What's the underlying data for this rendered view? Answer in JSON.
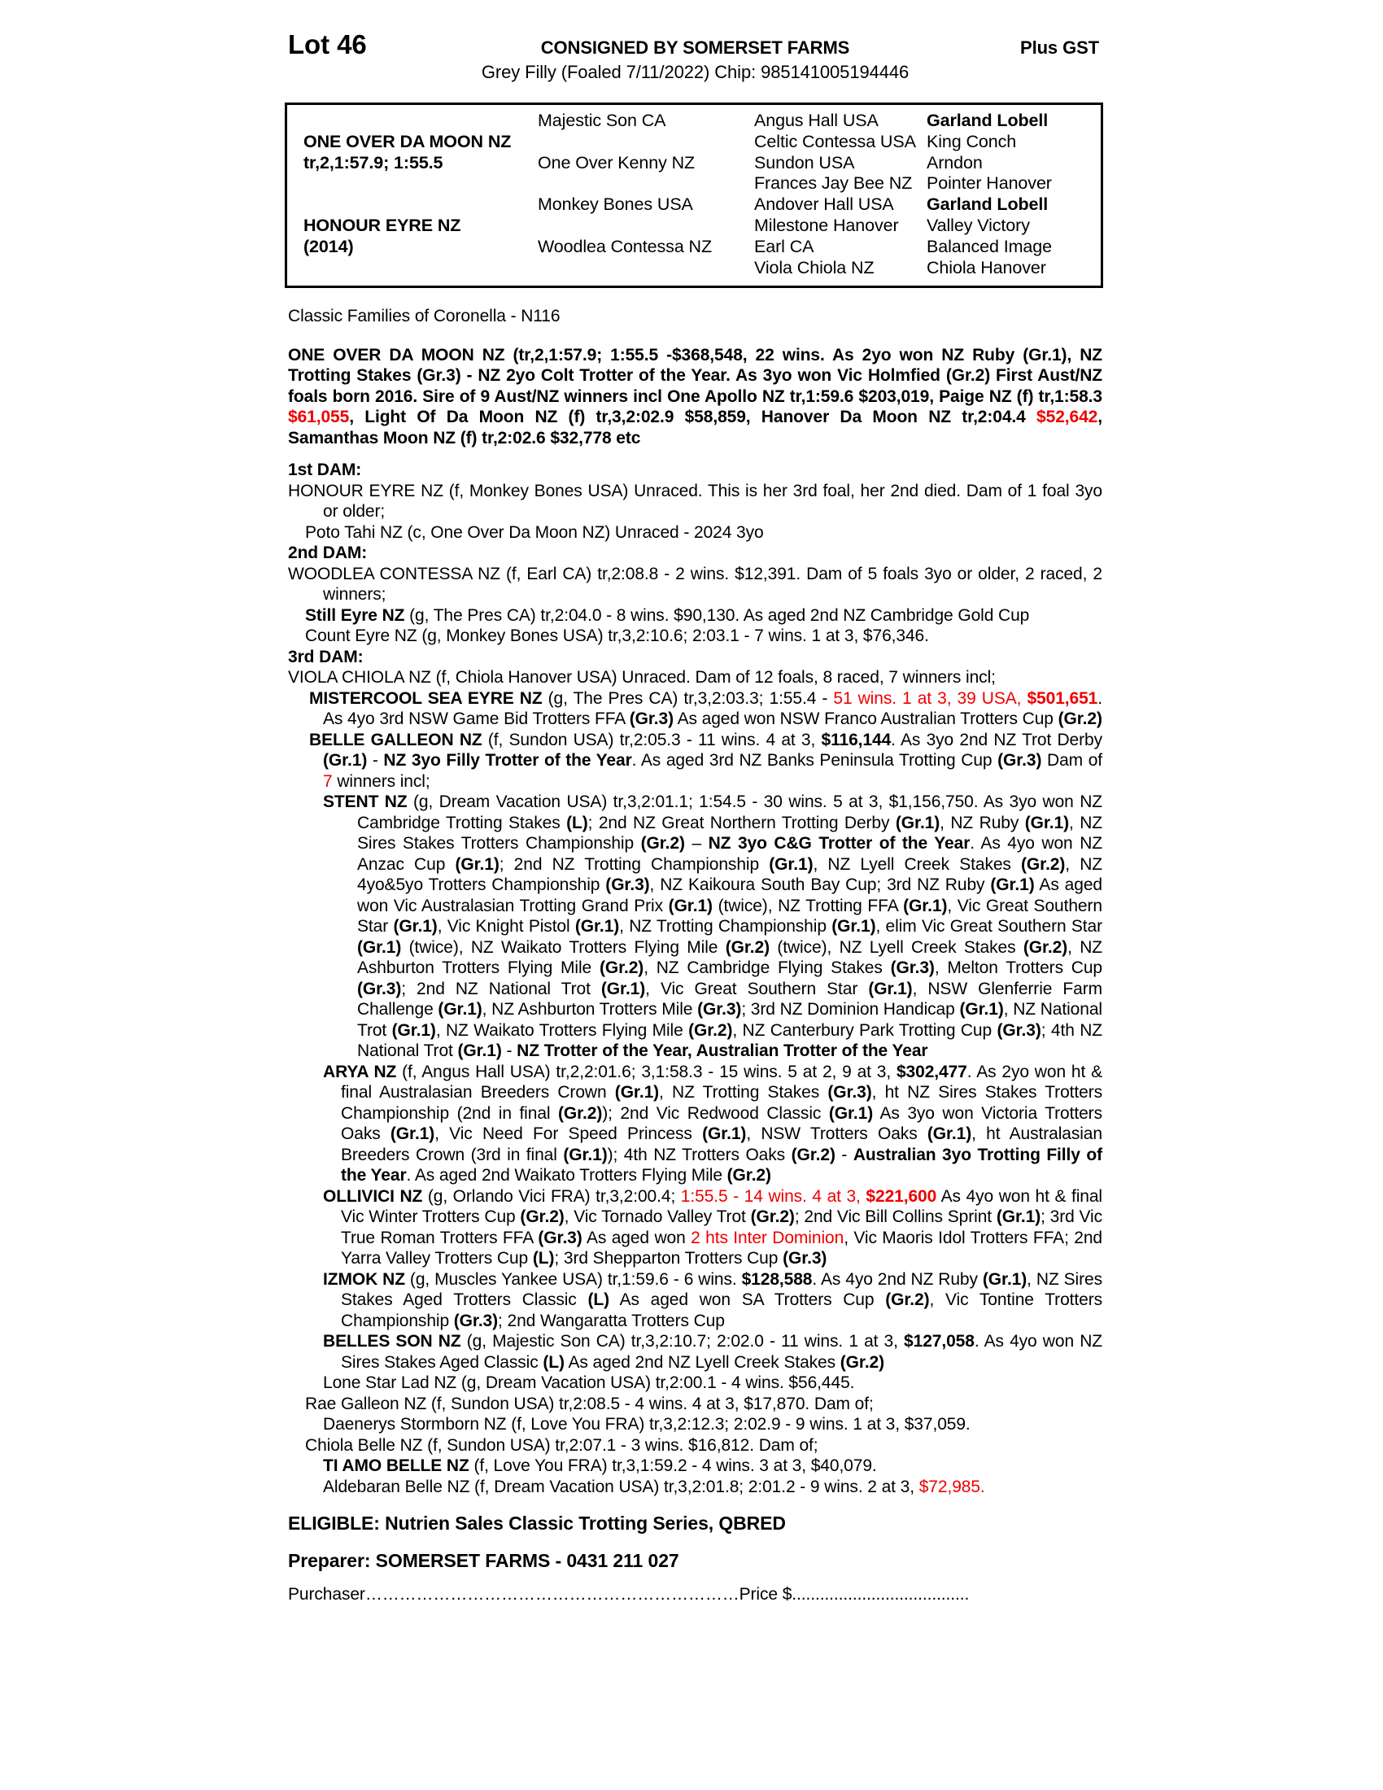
{
  "colors": {
    "text": "#000000",
    "highlight_red": "#ee0000"
  },
  "header": {
    "lot": "Lot 46",
    "consigned": "CONSIGNED BY SOMERSET FARMS",
    "plus_gst": "Plus GST",
    "description": "Grey Filly (Foaled 7/11/2022) Chip: 985141005194446"
  },
  "pedigree_table": {
    "rows": [
      [
        {
          "t": ""
        },
        {
          "t": "Majestic Son CA"
        },
        {
          "t": "Angus Hall USA"
        },
        {
          "t": "Garland Lobell",
          "b": true
        }
      ],
      [
        {
          "t": "ONE OVER DA MOON NZ",
          "b": true
        },
        {
          "t": ""
        },
        {
          "t": "Celtic Contessa USA"
        },
        {
          "t": "King Conch"
        }
      ],
      [
        {
          "t": "tr,2,1:57.9; 1:55.5",
          "b": true
        },
        {
          "t": "One Over Kenny NZ"
        },
        {
          "t": "Sundon USA"
        },
        {
          "t": "Arndon"
        }
      ],
      [
        {
          "t": ""
        },
        {
          "t": ""
        },
        {
          "t": "Frances Jay Bee NZ"
        },
        {
          "t": "Pointer Hanover"
        }
      ],
      [
        {
          "t": ""
        },
        {
          "t": "Monkey Bones USA"
        },
        {
          "t": "Andover Hall USA"
        },
        {
          "t": "Garland Lobell",
          "b": true
        }
      ],
      [
        {
          "t": "HONOUR EYRE NZ",
          "b": true
        },
        {
          "t": ""
        },
        {
          "t": "Milestone Hanover"
        },
        {
          "t": "Valley Victory"
        }
      ],
      [
        {
          "t": "(2014)",
          "b": true
        },
        {
          "t": "Woodlea Contessa NZ"
        },
        {
          "t": "Earl CA"
        },
        {
          "t": "Balanced Image"
        }
      ],
      [
        {
          "t": ""
        },
        {
          "t": ""
        },
        {
          "t": "Viola Chiola NZ"
        },
        {
          "t": "Chiola Hanover"
        }
      ]
    ]
  },
  "body": {
    "paragraphs": [
      {
        "n": "family-note",
        "c": "gap",
        "runs": [
          [
            "Classic Families of Coronella - N116",
            ""
          ]
        ]
      },
      {
        "n": "sire-summary",
        "c": "gap justify",
        "runs": [
          [
            "ONE OVER DA MOON NZ (tr,2,1:57.9; 1:55.5 -$368,548, 22 wins. As 2yo won NZ Ruby (Gr.1), NZ Trotting Stakes (Gr.3) - NZ 2yo Colt Trotter of the Year. As 3yo won Vic Holmfied (Gr.2) First Aust/NZ foals born 2016. Sire of 9 Aust/NZ winners incl One Apollo NZ tr,1:59.6 $203,019, Paige NZ (f) tr,1:58.3 ",
            "b"
          ],
          [
            "$61,055",
            "br"
          ],
          [
            ", Light Of Da Moon NZ (f) tr,3,2:02.9 $58,859, Hanover Da Moon NZ tr,2:04.4 ",
            "b"
          ],
          [
            "$52,642",
            "br"
          ],
          [
            ", Samanthas Moon NZ (f) tr,2:02.6 $32,778 etc",
            "b"
          ]
        ]
      },
      {
        "n": "dam1-heading",
        "c": "gap-md",
        "runs": [
          [
            "1st DAM:",
            "b"
          ]
        ]
      },
      {
        "n": "dam1-entry",
        "c": "justify hang0",
        "runs": [
          [
            "HONOUR EYRE NZ (f, Monkey Bones USA) Unraced. This is her 3rd foal, her 2nd died. Dam of 1 foal 3yo or older;",
            ""
          ]
        ]
      },
      {
        "n": "entry-poto-tahi",
        "c": "lvl1",
        "runs": [
          [
            "Poto Tahi NZ (c, One Over Da Moon NZ) Unraced - 2024 3yo",
            ""
          ]
        ]
      },
      {
        "n": "dam2-heading",
        "c": "",
        "runs": [
          [
            "2nd DAM:",
            "b"
          ]
        ]
      },
      {
        "n": "dam2-entry",
        "c": "justify hang0",
        "runs": [
          [
            "WOODLEA CONTESSA NZ (f, Earl CA) tr,2:08.8 - 2 wins. $12,391. Dam of 5 foals 3yo or older, 2 raced, 2 winners;",
            ""
          ]
        ]
      },
      {
        "n": "entry-still-eyre",
        "c": "lvl1",
        "runs": [
          [
            "Still Eyre NZ",
            "b"
          ],
          [
            " (g, The Pres CA) tr,2:04.0 - 8 wins. $90,130. As aged 2nd NZ Cambridge Gold Cup",
            ""
          ]
        ]
      },
      {
        "n": "entry-count-eyre",
        "c": "lvl1",
        "runs": [
          [
            "Count Eyre NZ (g, Monkey Bones USA) tr,3,2:10.6; 2:03.1 - 7 wins. 1 at 3, $76,346.",
            ""
          ]
        ]
      },
      {
        "n": "dam3-heading",
        "c": "",
        "runs": [
          [
            "3rd DAM:",
            "b"
          ]
        ]
      },
      {
        "n": "dam3-entry",
        "c": "hang0",
        "runs": [
          [
            "VIOLA CHIOLA NZ (f, Chiola Hanover USA) Unraced. Dam of 12 foals, 8 raced, 7 winners incl;",
            ""
          ]
        ]
      },
      {
        "n": "entry-mistercool",
        "c": "lvl2 hang-sm justify",
        "runs": [
          [
            "MISTERCOOL SEA EYRE NZ",
            "b"
          ],
          [
            " (g, The Pres CA) tr,3,2:03.3; 1:55.4 - ",
            ""
          ],
          [
            "51 wins. 1 at 3, 39 USA, ",
            "r"
          ],
          [
            "$501,651",
            "br"
          ],
          [
            ". As 4yo 3rd NSW Game Bid Trotters FFA ",
            ""
          ],
          [
            "(Gr.3)",
            "b"
          ],
          [
            " As aged won NSW Franco Australian Trotters Cup ",
            ""
          ],
          [
            "(Gr.2)",
            "b"
          ]
        ]
      },
      {
        "n": "entry-belle-galleon",
        "c": "lvl2 hang-sm justify",
        "runs": [
          [
            "BELLE GALLEON NZ",
            "b"
          ],
          [
            " (f, Sundon USA) tr,2:05.3 - 11 wins. 4 at 3, ",
            ""
          ],
          [
            "$116,144",
            "b"
          ],
          [
            ". As 3yo 2nd NZ Trot Derby ",
            ""
          ],
          [
            "(Gr.1)",
            "b"
          ],
          [
            " - ",
            ""
          ],
          [
            "NZ 3yo Filly Trotter of the Year",
            "b"
          ],
          [
            ". As aged 3rd NZ Banks Peninsula Trotting Cup ",
            ""
          ],
          [
            "(Gr.3)",
            "b"
          ],
          [
            " Dam of ",
            ""
          ],
          [
            "7",
            "r"
          ],
          [
            " winners incl;",
            ""
          ]
        ]
      },
      {
        "n": "entry-stent",
        "c": "lvl3 hang-xl justify",
        "runs": [
          [
            "STENT NZ",
            "b"
          ],
          [
            " (g, Dream Vacation USA) tr,3,2:01.1; 1:54.5 - 30 wins. 5 at 3, $1,156,750. As 3yo won NZ Cambridge Trotting Stakes ",
            ""
          ],
          [
            "(L)",
            "b"
          ],
          [
            "; 2nd NZ Great Northern Trotting Derby ",
            ""
          ],
          [
            "(Gr.1)",
            "b"
          ],
          [
            ", NZ Ruby ",
            ""
          ],
          [
            "(Gr.1)",
            "b"
          ],
          [
            ", NZ Sires Stakes Trotters Championship ",
            ""
          ],
          [
            "(Gr.2)",
            "b"
          ],
          [
            " – ",
            ""
          ],
          [
            "NZ 3yo C&G Trotter of the Year",
            "b"
          ],
          [
            ". As 4yo won NZ Anzac Cup ",
            ""
          ],
          [
            "(Gr.1)",
            "b"
          ],
          [
            "; 2nd NZ Trotting Championship ",
            ""
          ],
          [
            "(Gr.1)",
            "b"
          ],
          [
            ", NZ Lyell Creek Stakes ",
            ""
          ],
          [
            "(Gr.2)",
            "b"
          ],
          [
            ", NZ 4yo&5yo Trotters Championship ",
            ""
          ],
          [
            "(Gr.3)",
            "b"
          ],
          [
            ", NZ Kaikoura South Bay Cup; 3rd NZ Ruby ",
            ""
          ],
          [
            "(Gr.1)",
            "b"
          ],
          [
            " As aged won Vic Australasian Trotting Grand Prix ",
            ""
          ],
          [
            "(Gr.1)",
            "b"
          ],
          [
            " (twice), NZ Trotting FFA ",
            ""
          ],
          [
            "(Gr.1)",
            "b"
          ],
          [
            ", Vic Great Southern Star ",
            ""
          ],
          [
            "(Gr.1)",
            "b"
          ],
          [
            ", Vic Knight Pistol ",
            ""
          ],
          [
            "(Gr.1)",
            "b"
          ],
          [
            ", NZ Trotting Championship ",
            ""
          ],
          [
            "(Gr.1)",
            "b"
          ],
          [
            ", elim Vic Great Southern Star ",
            ""
          ],
          [
            "(Gr.1)",
            "b"
          ],
          [
            " (twice), NZ Waikato Trotters Flying Mile ",
            ""
          ],
          [
            "(Gr.2)",
            "b"
          ],
          [
            " (twice), NZ Lyell Creek Stakes ",
            ""
          ],
          [
            "(Gr.2)",
            "b"
          ],
          [
            ", NZ Ashburton Trotters Flying Mile ",
            ""
          ],
          [
            "(Gr.2)",
            "b"
          ],
          [
            ", NZ Cambridge Flying Stakes ",
            ""
          ],
          [
            "(Gr.3)",
            "b"
          ],
          [
            ", Melton Trotters Cup ",
            ""
          ],
          [
            "(Gr.3)",
            "b"
          ],
          [
            "; 2nd NZ National Trot ",
            ""
          ],
          [
            "(Gr.1)",
            "b"
          ],
          [
            ", Vic Great Southern Star ",
            ""
          ],
          [
            "(Gr.1)",
            "b"
          ],
          [
            ", NSW Glenferrie Farm Challenge ",
            ""
          ],
          [
            "(Gr.1)",
            "b"
          ],
          [
            ", NZ Ashburton Trotters Mile ",
            ""
          ],
          [
            "(Gr.3)",
            "b"
          ],
          [
            "; 3rd NZ Dominion Handicap ",
            ""
          ],
          [
            "(Gr.1)",
            "b"
          ],
          [
            ", NZ National Trot ",
            ""
          ],
          [
            "(Gr.1)",
            "b"
          ],
          [
            ", NZ Waikato Trotters Flying Mile ",
            ""
          ],
          [
            "(Gr.2)",
            "b"
          ],
          [
            ", NZ Canterbury Park Trotting Cup ",
            ""
          ],
          [
            "(Gr.3)",
            "b"
          ],
          [
            "; 4th NZ National Trot ",
            ""
          ],
          [
            "(Gr.1)",
            "b"
          ],
          [
            " - ",
            ""
          ],
          [
            "NZ Trotter of the Year, Australian Trotter of the Year",
            "b"
          ]
        ]
      },
      {
        "n": "entry-arya",
        "c": "lvl3 hang justify",
        "runs": [
          [
            "ARYA NZ",
            "b"
          ],
          [
            " (f, Angus Hall USA) tr,2,2:01.6; 3,1:58.3 - 15 wins. 5 at 2, 9 at 3, ",
            ""
          ],
          [
            "$302,477",
            "b"
          ],
          [
            ". As 2yo won ht & final Australasian Breeders Crown ",
            ""
          ],
          [
            "(Gr.1)",
            "b"
          ],
          [
            ", NZ Trotting Stakes ",
            ""
          ],
          [
            "(Gr.3)",
            "b"
          ],
          [
            ", ht NZ Sires Stakes Trotters Championship (2nd in final ",
            ""
          ],
          [
            "(Gr.2)",
            "b"
          ],
          [
            "); 2nd Vic Redwood Classic ",
            ""
          ],
          [
            "(Gr.1)",
            "b"
          ],
          [
            " As 3yo won Victoria Trotters Oaks ",
            ""
          ],
          [
            "(Gr.1)",
            "b"
          ],
          [
            ", Vic Need For Speed Princess ",
            ""
          ],
          [
            "(Gr.1)",
            "b"
          ],
          [
            ", NSW Trotters Oaks ",
            ""
          ],
          [
            "(Gr.1)",
            "b"
          ],
          [
            ", ht Australasian Breeders Crown (3rd in final ",
            ""
          ],
          [
            "(Gr.1)",
            "b"
          ],
          [
            "); 4th NZ Trotters Oaks ",
            ""
          ],
          [
            "(Gr.2)",
            "b"
          ],
          [
            " - ",
            ""
          ],
          [
            "Australian 3yo Trotting Filly of the Year",
            "b"
          ],
          [
            ". As aged 2nd Waikato Trotters Flying Mile ",
            ""
          ],
          [
            "(Gr.2)",
            "b"
          ]
        ]
      },
      {
        "n": "entry-ollivici",
        "c": "lvl3 hang justify",
        "runs": [
          [
            "OLLIVICI NZ",
            "b"
          ],
          [
            " (g, Orlando Vici FRA) tr,3,2:00.4; ",
            ""
          ],
          [
            "1:55.5 - 14 wins. 4 at 3, ",
            "r"
          ],
          [
            "$221,600",
            "br"
          ],
          [
            " As 4yo won ht & final Vic Winter Trotters Cup ",
            ""
          ],
          [
            "(Gr.2)",
            "b"
          ],
          [
            ", Vic Tornado Valley Trot ",
            ""
          ],
          [
            "(Gr.2)",
            "b"
          ],
          [
            "; 2nd Vic Bill Collins Sprint ",
            ""
          ],
          [
            "(Gr.1)",
            "b"
          ],
          [
            "; 3rd Vic True Roman Trotters FFA ",
            ""
          ],
          [
            "(Gr.3)",
            "b"
          ],
          [
            " As aged won ",
            ""
          ],
          [
            "2 hts Inter Dominion",
            "r"
          ],
          [
            ", Vic Maoris Idol Trotters FFA; 2nd Yarra Valley Trotters Cup ",
            ""
          ],
          [
            "(L)",
            "b"
          ],
          [
            "; 3rd Shepparton Trotters Cup ",
            ""
          ],
          [
            "(Gr.3)",
            "b"
          ]
        ]
      },
      {
        "n": "entry-izmok",
        "c": "lvl3 hang justify",
        "runs": [
          [
            "IZMOK NZ",
            "b"
          ],
          [
            " (g, Muscles Yankee USA) tr,1:59.6 - 6 wins. ",
            ""
          ],
          [
            "$128,588",
            "b"
          ],
          [
            ". As 4yo 2nd NZ Ruby ",
            ""
          ],
          [
            "(Gr.1)",
            "b"
          ],
          [
            ", NZ Sires Stakes Aged Trotters Classic ",
            ""
          ],
          [
            "(L)",
            "b"
          ],
          [
            " As aged won SA Trotters Cup ",
            ""
          ],
          [
            "(Gr.2)",
            "b"
          ],
          [
            ", Vic Tontine Trotters Championship ",
            ""
          ],
          [
            "(Gr.3)",
            "b"
          ],
          [
            "; 2nd Wangaratta Trotters Cup",
            ""
          ]
        ]
      },
      {
        "n": "entry-belles-son",
        "c": "lvl3 hang justify",
        "runs": [
          [
            "BELLES SON NZ",
            "b"
          ],
          [
            " (g, Majestic Son CA) tr,3,2:10.7; 2:02.0 - 11 wins. 1 at 3, ",
            ""
          ],
          [
            "$127,058",
            "b"
          ],
          [
            ". As 4yo won NZ Sires Stakes Aged Classic ",
            ""
          ],
          [
            "(L)",
            "b"
          ],
          [
            " As aged 2nd NZ Lyell Creek Stakes ",
            ""
          ],
          [
            "(Gr.2)",
            "b"
          ]
        ]
      },
      {
        "n": "entry-lone-star-lad",
        "c": "lvl3",
        "runs": [
          [
            "Lone Star Lad NZ (g, Dream Vacation USA) tr,2:00.1 - 4 wins. $56,445.",
            ""
          ]
        ]
      },
      {
        "n": "entry-rae-galleon",
        "c": "lvl1",
        "runs": [
          [
            "Rae Galleon NZ (f, Sundon USA) tr,2:08.5 - 4 wins. 4 at 3, $17,870. Dam of;",
            ""
          ]
        ]
      },
      {
        "n": "entry-daenerys",
        "c": "lvl3",
        "runs": [
          [
            "Daenerys Stormborn NZ (f, Love You FRA) tr,3,2:12.3; 2:02.9 - 9 wins. 1 at 3, $37,059.",
            ""
          ]
        ]
      },
      {
        "n": "entry-chiola-belle",
        "c": "lvl1",
        "runs": [
          [
            "Chiola Belle NZ (f, Sundon USA) tr,2:07.1 - 3 wins. $16,812. Dam of;",
            ""
          ]
        ]
      },
      {
        "n": "entry-ti-amo-belle",
        "c": "lvl3",
        "runs": [
          [
            "TI AMO BELLE NZ",
            "b"
          ],
          [
            " (f, Love You FRA) tr,3,1:59.2 - 4 wins. 3 at 3, $40,079.",
            ""
          ]
        ]
      },
      {
        "n": "entry-aldebaran-belle",
        "c": "lvl3",
        "runs": [
          [
            "Aldebaran Belle NZ (f, Dream Vacation USA) tr,3,2:01.8; 2:01.2 - 9 wins. 2 at 3, ",
            ""
          ],
          [
            "$72,985.",
            "r"
          ]
        ]
      }
    ]
  },
  "footer": {
    "eligible": "ELIGIBLE: Nutrien Sales Classic Trotting Series, QBRED",
    "preparer": "Preparer: SOMERSET FARMS - 0431 211 027",
    "purchaser_label": "Purchaser",
    "purchaser_dots": "…………………………………………………………",
    "price_label": "Price $",
    "price_dots": "......................................"
  }
}
